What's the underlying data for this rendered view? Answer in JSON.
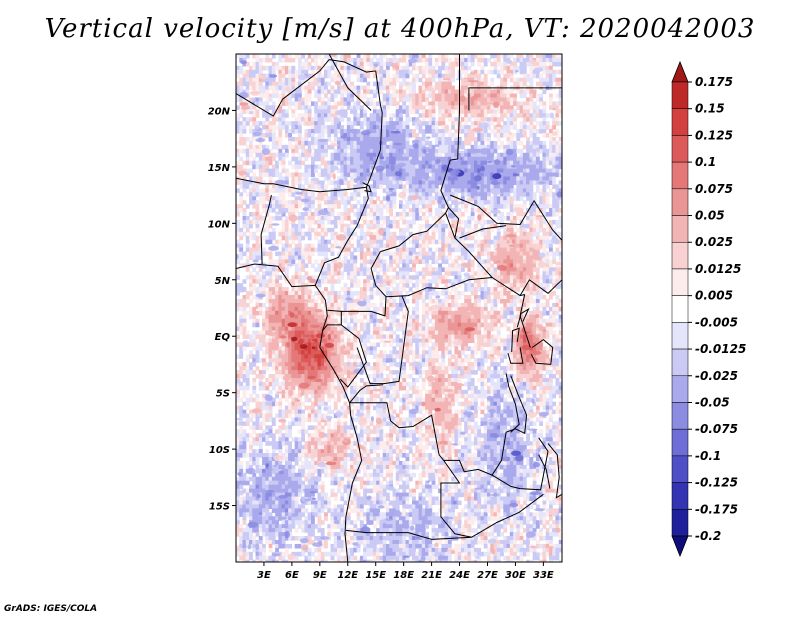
{
  "title": "Vertical velocity [m/s] at 400hPa, VT: 2020042003",
  "credit": "GrADS: IGES/COLA",
  "map": {
    "lon_range": [
      0,
      35
    ],
    "lat_range": [
      -20,
      25
    ],
    "lat_ticks": [
      {
        "value": 20,
        "label": "20N"
      },
      {
        "value": 15,
        "label": "15N"
      },
      {
        "value": 10,
        "label": "10N"
      },
      {
        "value": 5,
        "label": "5N"
      },
      {
        "value": 0,
        "label": "EQ"
      },
      {
        "value": -5,
        "label": "5S"
      },
      {
        "value": -10,
        "label": "10S"
      },
      {
        "value": -15,
        "label": "15S"
      }
    ],
    "lon_ticks": [
      {
        "value": 3,
        "label": "3E"
      },
      {
        "value": 6,
        "label": "6E"
      },
      {
        "value": 9,
        "label": "9E"
      },
      {
        "value": 12,
        "label": "12E"
      },
      {
        "value": 15,
        "label": "15E"
      },
      {
        "value": 18,
        "label": "18E"
      },
      {
        "value": 21,
        "label": "21E"
      },
      {
        "value": 24,
        "label": "24E"
      },
      {
        "value": 27,
        "label": "27E"
      },
      {
        "value": 30,
        "label": "30E"
      },
      {
        "value": 33,
        "label": "33E"
      }
    ]
  },
  "colorbar": {
    "labels": [
      "0.175",
      "0.15",
      "0.125",
      "0.1",
      "0.075",
      "0.05",
      "0.025",
      "0.0125",
      "0.005",
      "-0.005",
      "-0.0125",
      "-0.025",
      "-0.05",
      "-0.075",
      "-0.1",
      "-0.125",
      "-0.175",
      "-0.2"
    ],
    "colors": [
      "#a01818",
      "#be2a2a",
      "#d24040",
      "#dc5a5a",
      "#e47878",
      "#eb9696",
      "#f2b4b4",
      "#f8d2d2",
      "#fdecec",
      "#ffffff",
      "#e4e4fb",
      "#cacaf5",
      "#a9a9ec",
      "#8c8ce2",
      "#6e6ed6",
      "#4f4fc7",
      "#3434b3",
      "#20209a",
      "#0e0e7a"
    ]
  }
}
